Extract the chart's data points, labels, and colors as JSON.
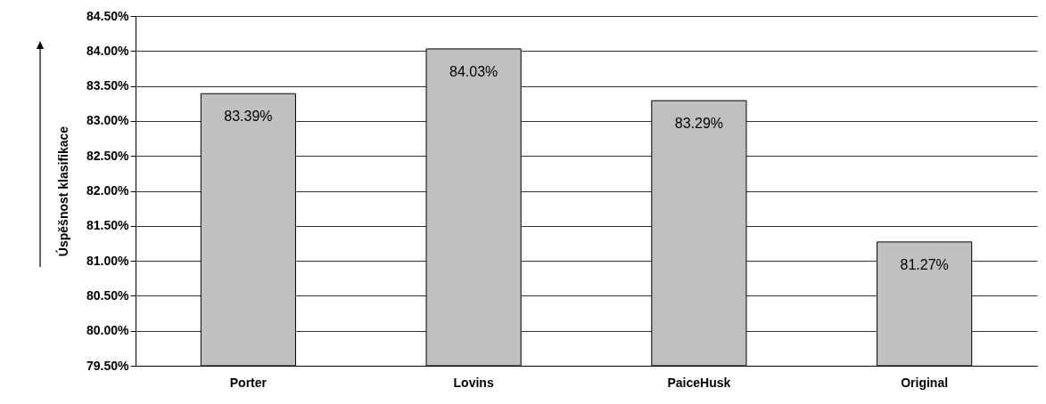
{
  "chart_data": {
    "type": "bar",
    "ylabel": "Úspěšnost klasifikace",
    "categories": [
      "Porter",
      "Lovins",
      "PaiceHusk",
      "Original"
    ],
    "values": [
      83.39,
      84.03,
      83.29,
      81.27
    ],
    "value_labels": [
      "83.39%",
      "84.03%",
      "83.29%",
      "81.27%"
    ],
    "color": "#c0c0c0",
    "ylim": [
      79.5,
      84.5
    ],
    "yticks": [
      {
        "value": 79.5,
        "label": "79.50%"
      },
      {
        "value": 80,
        "label": "80.00%"
      },
      {
        "value": 80.5,
        "label": "80.50%"
      },
      {
        "value": 81,
        "label": "81.00%"
      },
      {
        "value": 81.5,
        "label": "81.50%"
      },
      {
        "value": 82,
        "label": "82.00%"
      },
      {
        "value": 82.5,
        "label": "82.50%"
      },
      {
        "value": 83,
        "label": "83.00%"
      },
      {
        "value": 83.5,
        "label": "83.50%"
      },
      {
        "value": 84,
        "label": "84.00%"
      },
      {
        "value": 84.5,
        "label": "84.50%"
      }
    ],
    "grid": "y"
  }
}
